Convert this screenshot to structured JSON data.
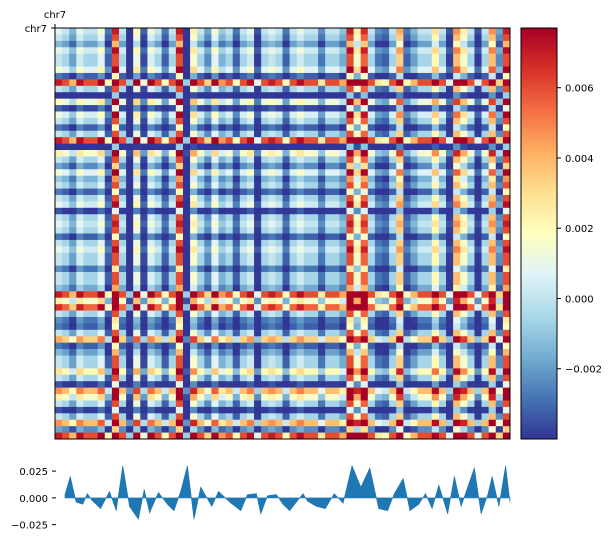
{
  "chart_data": [
    {
      "type": "heatmap",
      "title": "",
      "x_axis_label": "chr7",
      "y_axis_label": "chr7",
      "grid": false,
      "value_range": [
        -0.004,
        0.0077
      ],
      "colormap": "RdYlBu_r",
      "colormap_stops": [
        "#313695",
        "#4575b4",
        "#74add1",
        "#abd9e9",
        "#e0f3f8",
        "#ffffbf",
        "#fee090",
        "#fdae61",
        "#f46d43",
        "#d73027",
        "#a50026"
      ],
      "background_value": -0.0006,
      "profile_positions": [
        0.012,
        0.04,
        0.05,
        0.1,
        0.115,
        0.13,
        0.165,
        0.178,
        0.19,
        0.21,
        0.245,
        0.275,
        0.29,
        0.305,
        0.33,
        0.345,
        0.37,
        0.395,
        0.43,
        0.44,
        0.475,
        0.505,
        0.535,
        0.545,
        0.585,
        0.625,
        0.645,
        0.665,
        0.685,
        0.705,
        0.725,
        0.76,
        0.775,
        0.795,
        0.84,
        0.86,
        0.875,
        0.905,
        0.935,
        0.96,
        0.975,
        0.99
      ],
      "profile_values": [
        0.003,
        -0.006,
        0.004,
        0.006,
        -0.012,
        0.03,
        -0.02,
        0.008,
        -0.014,
        0.005,
        -0.012,
        0.03,
        -0.02,
        0.01,
        -0.008,
        0.006,
        -0.004,
        -0.012,
        0.004,
        -0.015,
        0.003,
        -0.012,
        0.004,
        -0.003,
        -0.01,
        -0.005,
        0.03,
        0.01,
        0.028,
        -0.01,
        -0.012,
        0.018,
        -0.012,
        -0.006,
        0.012,
        -0.015,
        0.02,
        0.01,
        -0.015,
        0.02,
        -0.008,
        0.03
      ],
      "colorbar": {
        "ticks": [
          -0.002,
          0.0,
          0.002,
          0.004,
          0.006
        ],
        "tick_labels": [
          "−0.002",
          "0.000",
          "0.002",
          "0.004",
          "0.006"
        ]
      }
    },
    {
      "type": "area",
      "title": "",
      "xlabel": "",
      "ylabel": "",
      "ylim": [
        -0.03,
        0.04
      ],
      "color": "#1f77b4",
      "x_range": [
        0,
        1
      ],
      "yticks": [
        0.025,
        0.0,
        -0.025
      ],
      "ytick_labels": [
        "0.025",
        "0.000",
        "−0.025"
      ],
      "x": [
        0.0,
        0.012,
        0.025,
        0.04,
        0.05,
        0.06,
        0.08,
        0.1,
        0.115,
        0.13,
        0.145,
        0.165,
        0.178,
        0.19,
        0.21,
        0.23,
        0.245,
        0.26,
        0.275,
        0.29,
        0.305,
        0.33,
        0.345,
        0.37,
        0.395,
        0.41,
        0.43,
        0.44,
        0.455,
        0.475,
        0.49,
        0.505,
        0.52,
        0.535,
        0.545,
        0.565,
        0.585,
        0.605,
        0.625,
        0.645,
        0.665,
        0.685,
        0.705,
        0.725,
        0.74,
        0.76,
        0.775,
        0.795,
        0.81,
        0.825,
        0.84,
        0.86,
        0.875,
        0.89,
        0.905,
        0.92,
        0.935,
        0.95,
        0.96,
        0.975,
        0.99,
        1.0
      ],
      "y": [
        0.003,
        0.02,
        -0.004,
        -0.006,
        0.004,
        -0.002,
        -0.01,
        0.006,
        -0.012,
        0.03,
        -0.008,
        -0.02,
        0.008,
        -0.014,
        0.005,
        -0.006,
        -0.012,
        0.006,
        0.03,
        -0.02,
        0.01,
        -0.008,
        0.006,
        -0.004,
        -0.012,
        0.003,
        0.004,
        -0.015,
        0.002,
        0.003,
        -0.006,
        -0.012,
        -0.004,
        0.004,
        -0.003,
        -0.008,
        -0.01,
        0.004,
        -0.005,
        0.03,
        0.01,
        0.028,
        -0.01,
        -0.012,
        0.004,
        0.018,
        -0.012,
        -0.006,
        0.004,
        -0.01,
        0.012,
        -0.015,
        0.02,
        -0.008,
        0.01,
        0.028,
        -0.015,
        0.003,
        0.02,
        -0.008,
        0.03,
        -0.004
      ]
    }
  ]
}
